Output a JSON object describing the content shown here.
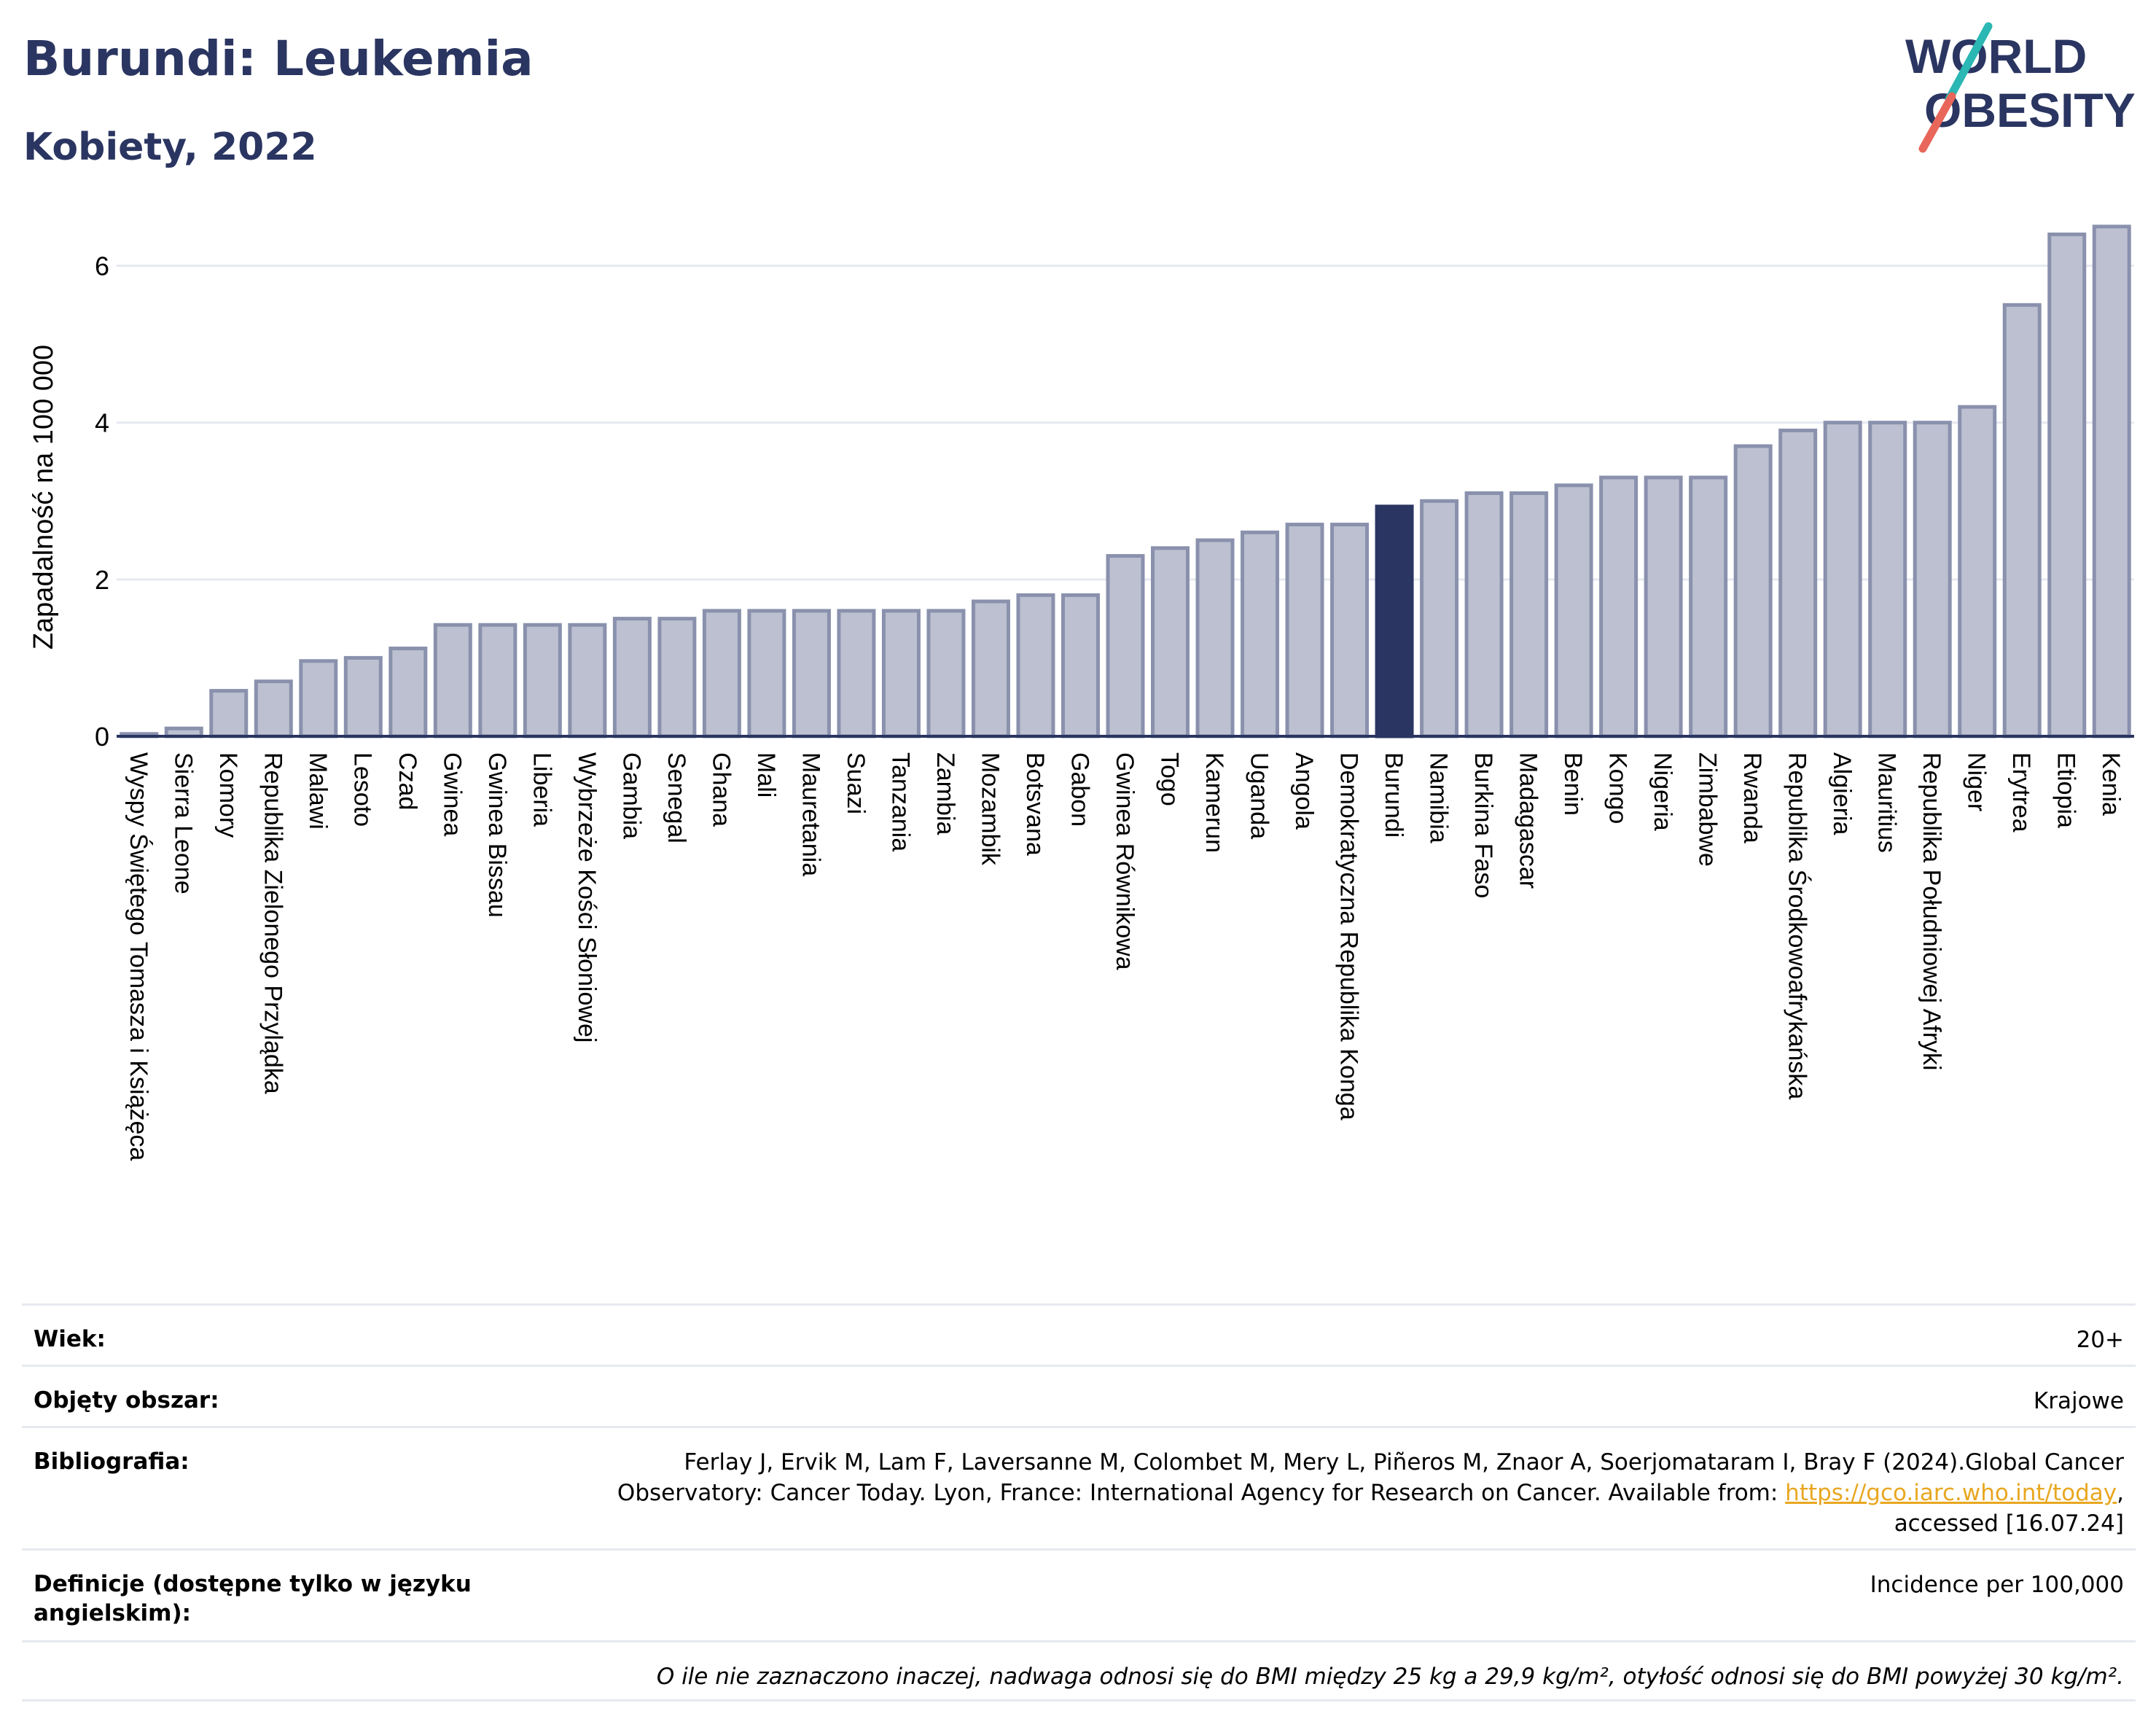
{
  "header": {
    "title": "Burundi: Leukemia",
    "subtitle": "Kobiety, 2022"
  },
  "logo": {
    "line1": "WORLD",
    "line2": "OBESITY",
    "colors": {
      "text": "#2a3561",
      "slash_teal": "#2bb7b3",
      "slash_coral": "#e8665a"
    }
  },
  "colors": {
    "bar_fill": "#bcc0d0",
    "bar_stroke": "#8a91ad",
    "highlight_fill": "#2a3561",
    "grid": "#e6e9f0",
    "axis": "#2a3561"
  },
  "chart_data": {
    "type": "bar",
    "ylabel": "Zapadalność na 100 000",
    "xlabel": "",
    "ylim": [
      0,
      6.6
    ],
    "yticks": [
      0,
      2,
      4,
      6
    ],
    "grid": true,
    "highlight": "Burundi",
    "categories": [
      "Wyspy Świętego Tomasza i Książęca",
      "Sierra Leone",
      "Komory",
      "Republika Zielonego Przylądka",
      "Malawi",
      "Lesoto",
      "Czad",
      "Gwinea",
      "Gwinea Bissau",
      "Liberia",
      "Wybrzeże Kości Słoniowej",
      "Gambia",
      "Senegal",
      "Ghana",
      "Mali",
      "Mauretania",
      "Suazi",
      "Tanzania",
      "Zambia",
      "Mozambik",
      "Botsvana",
      "Gabon",
      "Gwinea Równikowa",
      "Togo",
      "Kamerun",
      "Uganda",
      "Angola",
      "Demokratyczna Republika Konga",
      "Burundi",
      "Namibia",
      "Burkina Faso",
      "Madagascar",
      "Benin",
      "Kongo",
      "Nigeria",
      "Zimbabwe",
      "Rwanda",
      "Republika Środkowoafrykańska",
      "Algieria",
      "Mauritius",
      "Republika Południowej Afryki",
      "Niger",
      "Erytrea",
      "Etiopia",
      "Kenia"
    ],
    "values": [
      0.03,
      0.1,
      0.58,
      0.7,
      0.96,
      1.0,
      1.12,
      1.42,
      1.42,
      1.42,
      1.42,
      1.5,
      1.5,
      1.6,
      1.6,
      1.6,
      1.6,
      1.6,
      1.6,
      1.72,
      1.8,
      1.8,
      2.3,
      2.4,
      2.5,
      2.6,
      2.7,
      2.7,
      2.93,
      3.0,
      3.1,
      3.1,
      3.2,
      3.3,
      3.3,
      3.3,
      3.7,
      3.9,
      4.0,
      4.0,
      4.0,
      4.2,
      5.5,
      6.4,
      6.5
    ]
  },
  "meta": {
    "age_label": "Wiek:",
    "age_value": "20+",
    "area_label": "Objęty obszar:",
    "area_value": "Krajowe",
    "bib_label": "Bibliografia:",
    "bib_line1": "Ferlay J, Ervik M, Lam F, Laversanne M, Colombet M, Mery L, Piñeros M, Znaor A, Soerjomataram I, Bray F (2024).Global Cancer",
    "bib_line2_pre": "Observatory: Cancer Today. Lyon, France: International Agency for Research on Cancer. Available from: ",
    "bib_link": "https://gco.iarc.who.int/today",
    "bib_line2_post": ",",
    "bib_line3": "accessed [16.07.24]",
    "def_label": "Definicje (dostępne tylko w języku angielskim):",
    "def_value": "Incidence per 100,000",
    "note": "O ile nie zaznaczono inaczej, nadwaga odnosi się do BMI między 25 kg a 29,9 kg/m², otyłość odnosi się do BMI powyżej 30 kg/m²."
  }
}
